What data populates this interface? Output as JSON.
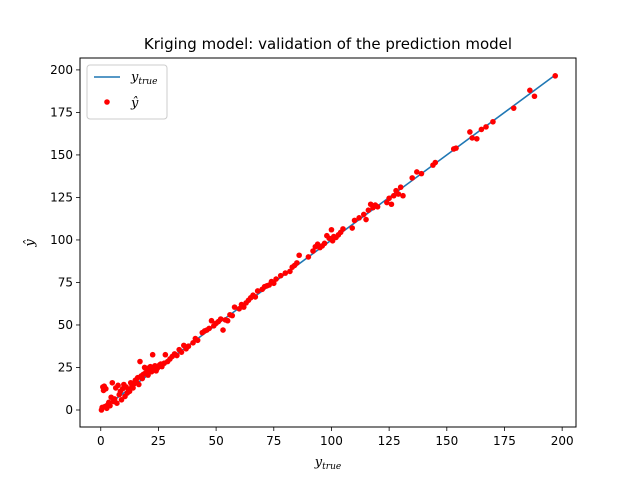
{
  "chart_data": {
    "type": "scatter",
    "title": "Kriging model: validation of the prediction model",
    "xlabel": {
      "base": "y",
      "sub": "true"
    },
    "ylabel": {
      "base": "ŷ"
    },
    "xlim": [
      -9,
      206
    ],
    "ylim": [
      -10,
      207
    ],
    "x_ticks": [
      0,
      25,
      50,
      75,
      100,
      125,
      150,
      175,
      200
    ],
    "y_ticks": [
      0,
      25,
      50,
      75,
      100,
      125,
      150,
      175,
      200
    ],
    "grid": false,
    "legend_position": "top-left",
    "series": [
      {
        "kind": "line",
        "legend": {
          "base": "y",
          "sub": "true"
        },
        "color": "#1f77b4",
        "points": [
          [
            0.5,
            0.5
          ],
          [
            197,
            197
          ]
        ]
      },
      {
        "kind": "scatter",
        "legend": {
          "base": "ŷ"
        },
        "color": "#ff0000",
        "points": [
          [
            0.3,
            0.0
          ],
          [
            0.6,
            1.5
          ],
          [
            0.9,
            13.5
          ],
          [
            1.2,
            11.5
          ],
          [
            1.5,
            14.0
          ],
          [
            1.8,
            2.0
          ],
          [
            2.2,
            12.5
          ],
          [
            2.6,
            1.0
          ],
          [
            3.0,
            3.0
          ],
          [
            3.5,
            4.5
          ],
          [
            4.0,
            2.5
          ],
          [
            4.5,
            7.5
          ],
          [
            5.0,
            16.0
          ],
          [
            5.5,
            5.0
          ],
          [
            6.0,
            6.5
          ],
          [
            6.5,
            13.0
          ],
          [
            7.0,
            4.0
          ],
          [
            7.5,
            14.5
          ],
          [
            8.0,
            9.0
          ],
          [
            8.5,
            11.0
          ],
          [
            9.0,
            6.0
          ],
          [
            9.5,
            12.5
          ],
          [
            10.0,
            15.0
          ],
          [
            10.5,
            8.0
          ],
          [
            11.0,
            13.5
          ],
          [
            11.5,
            10.0
          ],
          [
            12.0,
            12.0
          ],
          [
            12.5,
            11.0
          ],
          [
            13.0,
            16.0
          ],
          [
            13.5,
            14.0
          ],
          [
            14.0,
            13.0
          ],
          [
            14.5,
            15.5
          ],
          [
            15.0,
            17.5
          ],
          [
            15.5,
            16.5
          ],
          [
            16.0,
            19.0
          ],
          [
            16.5,
            15.0
          ],
          [
            17.0,
            28.5
          ],
          [
            17.5,
            20.0
          ],
          [
            18.0,
            18.5
          ],
          [
            18.5,
            21.0
          ],
          [
            19.0,
            25.0
          ],
          [
            19.5,
            22.0
          ],
          [
            20.0,
            24.5
          ],
          [
            20.5,
            20.5
          ],
          [
            21.0,
            23.5
          ],
          [
            21.5,
            25.5
          ],
          [
            22.0,
            22.5
          ],
          [
            22.5,
            32.5
          ],
          [
            23.0,
            24.0
          ],
          [
            23.5,
            26.0
          ],
          [
            24.0,
            23.0
          ],
          [
            24.5,
            24.5
          ],
          [
            25.0,
            25.5
          ],
          [
            25.5,
            26.5
          ],
          [
            26.0,
            27.0
          ],
          [
            26.5,
            25.5
          ],
          [
            27.5,
            27.5
          ],
          [
            28.0,
            32.5
          ],
          [
            29.0,
            28.5
          ],
          [
            30.0,
            30.0
          ],
          [
            31.0,
            31.5
          ],
          [
            32.0,
            33.0
          ],
          [
            33.0,
            32.0
          ],
          [
            34.0,
            35.5
          ],
          [
            35.0,
            34.0
          ],
          [
            36.0,
            38.0
          ],
          [
            37.0,
            36.0
          ],
          [
            38.0,
            37.5
          ],
          [
            40.0,
            39.5
          ],
          [
            41.0,
            42.0
          ],
          [
            42.0,
            41.0
          ],
          [
            44.0,
            45.5
          ],
          [
            45.0,
            46.5
          ],
          [
            46.0,
            47.0
          ],
          [
            47.0,
            48.0
          ],
          [
            48.0,
            52.5
          ],
          [
            49.0,
            49.5
          ],
          [
            50.0,
            51.0
          ],
          [
            51.0,
            52.0
          ],
          [
            52.0,
            53.5
          ],
          [
            53.0,
            47.0
          ],
          [
            54.0,
            53.0
          ],
          [
            55.0,
            52.5
          ],
          [
            56.0,
            56.0
          ],
          [
            57.0,
            55.5
          ],
          [
            58.0,
            60.5
          ],
          [
            60.0,
            59.5
          ],
          [
            61.0,
            62.0
          ],
          [
            62.0,
            60.5
          ],
          [
            63.0,
            63.0
          ],
          [
            64.0,
            64.5
          ],
          [
            65.0,
            66.0
          ],
          [
            66.0,
            67.5
          ],
          [
            67.0,
            66.5
          ],
          [
            68.0,
            70.0
          ],
          [
            70.0,
            71.0
          ],
          [
            71.0,
            72.5
          ],
          [
            72.0,
            73.0
          ],
          [
            73.0,
            73.5
          ],
          [
            74.0,
            75.5
          ],
          [
            75.0,
            74.5
          ],
          [
            76.0,
            77.0
          ],
          [
            78.0,
            79.0
          ],
          [
            80.0,
            80.5
          ],
          [
            82.0,
            81.5
          ],
          [
            83.0,
            84.0
          ],
          [
            84.0,
            85.0
          ],
          [
            85.0,
            86.5
          ],
          [
            86.0,
            91.0
          ],
          [
            90.0,
            90.0
          ],
          [
            92.0,
            93.5
          ],
          [
            93.0,
            96.0
          ],
          [
            94.0,
            97.5
          ],
          [
            95.0,
            95.5
          ],
          [
            96.0,
            96.5
          ],
          [
            97.0,
            98.0
          ],
          [
            98.0,
            102.5
          ],
          [
            99.0,
            101.0
          ],
          [
            100.0,
            106.0
          ],
          [
            100.5,
            99.5
          ],
          [
            101.0,
            102.0
          ],
          [
            102.0,
            101.5
          ],
          [
            103.0,
            103.0
          ],
          [
            104.0,
            104.5
          ],
          [
            105.0,
            106.5
          ],
          [
            109.0,
            107.0
          ],
          [
            110.0,
            111.5
          ],
          [
            112.0,
            113.0
          ],
          [
            114.0,
            115.0
          ],
          [
            115.0,
            112.0
          ],
          [
            116.0,
            117.5
          ],
          [
            117.0,
            121.0
          ],
          [
            118.0,
            119.0
          ],
          [
            119.0,
            120.5
          ],
          [
            120.0,
            119.5
          ],
          [
            124.0,
            122.0
          ],
          [
            125.0,
            124.5
          ],
          [
            126.0,
            121.0
          ],
          [
            127.0,
            126.0
          ],
          [
            128.0,
            129.0
          ],
          [
            129.0,
            127.0
          ],
          [
            130.0,
            131.0
          ],
          [
            131.0,
            126.0
          ],
          [
            135.0,
            136.5
          ],
          [
            137.0,
            140.0
          ],
          [
            139.0,
            139.0
          ],
          [
            144.0,
            144.0
          ],
          [
            145.0,
            145.5
          ],
          [
            153.0,
            153.5
          ],
          [
            154.0,
            154.0
          ],
          [
            160.0,
            163.5
          ],
          [
            161.0,
            160.0
          ],
          [
            163.0,
            159.5
          ],
          [
            165.0,
            165.0
          ],
          [
            167.0,
            166.5
          ],
          [
            170.0,
            169.5
          ],
          [
            179.0,
            177.5
          ],
          [
            186.0,
            188.0
          ],
          [
            188.0,
            184.5
          ],
          [
            197.0,
            196.5
          ]
        ]
      }
    ]
  }
}
